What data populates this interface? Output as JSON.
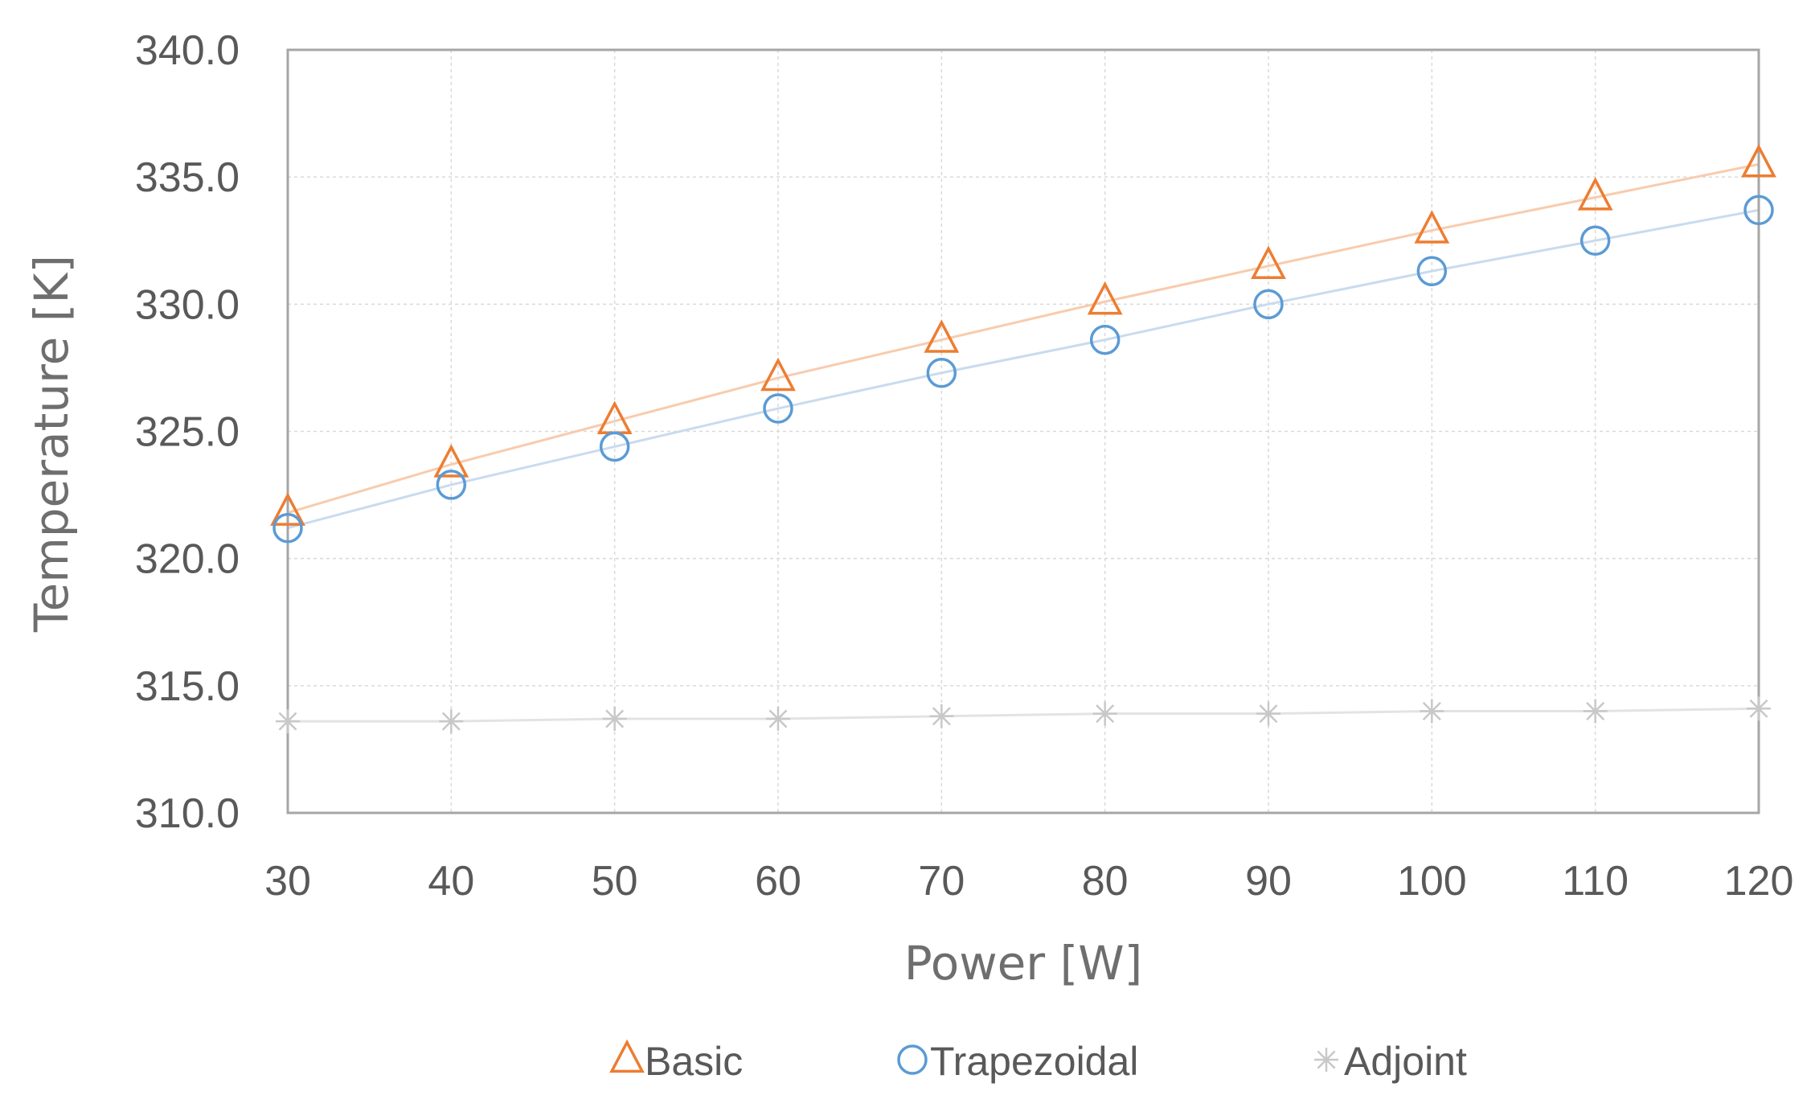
{
  "chart_data": {
    "type": "line",
    "title": "",
    "xlabel": "Power [W]",
    "ylabel": "Temperature [K]",
    "x": [
      30,
      40,
      50,
      60,
      70,
      80,
      90,
      100,
      110,
      120
    ],
    "xticks": [
      "30",
      "40",
      "50",
      "60",
      "70",
      "80",
      "90",
      "100",
      "110",
      "120"
    ],
    "yticks": [
      "310.0",
      "315.0",
      "320.0",
      "325.0",
      "330.0",
      "335.0",
      "340.0"
    ],
    "ylim": [
      310,
      340
    ],
    "xlim": [
      30,
      120
    ],
    "grid": true,
    "legend_position": "bottom",
    "series": [
      {
        "name": "Basic",
        "marker": "triangle",
        "color": "#ed7d31",
        "line_color": "#f8cbad",
        "values": [
          321.8,
          323.7,
          325.4,
          327.1,
          328.6,
          330.1,
          331.5,
          332.9,
          334.2,
          335.5
        ]
      },
      {
        "name": "Trapezoidal",
        "marker": "circle",
        "color": "#5b9bd5",
        "line_color": "#c9dbee",
        "values": [
          321.2,
          322.9,
          324.4,
          325.9,
          327.3,
          328.6,
          330.0,
          331.3,
          332.5,
          333.7
        ]
      },
      {
        "name": "Adjoint",
        "marker": "asterisk",
        "color": "#c8c8c8",
        "line_color": "#e3e3e3",
        "values": [
          313.6,
          313.6,
          313.7,
          313.7,
          313.8,
          313.9,
          313.9,
          314.0,
          314.0,
          314.1
        ]
      }
    ]
  }
}
